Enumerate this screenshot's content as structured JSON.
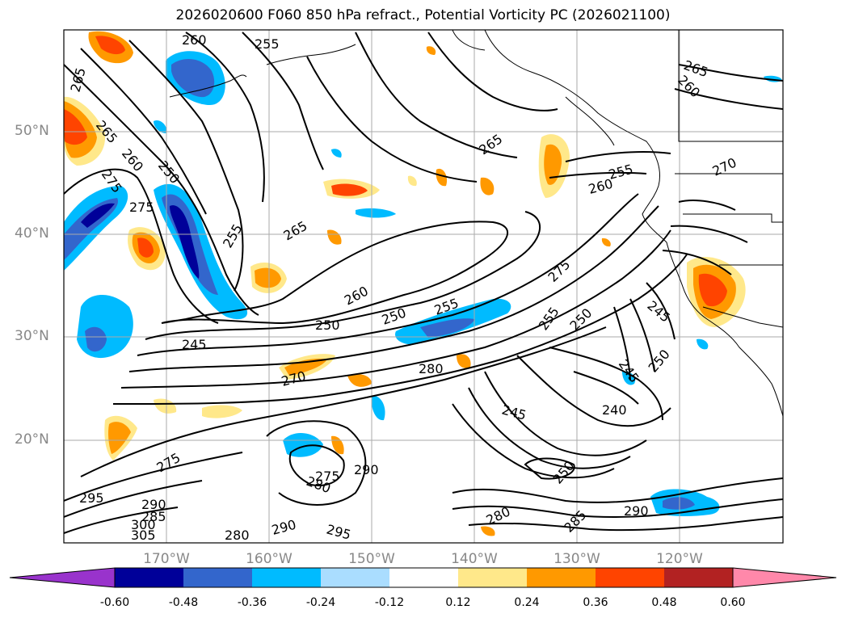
{
  "title": "2026020600 F060 850 hPa refract., Potential Vorticity PC (2026021100)",
  "lat_labels": [
    "50°N",
    "40°N",
    "30°N",
    "20°N"
  ],
  "lon_labels": [
    "170°W",
    "160°W",
    "150°W",
    "140°W",
    "130°W",
    "120°W"
  ],
  "colorbar": {
    "labels": [
      "-0.60",
      "-0.48",
      "-0.36",
      "-0.24",
      "-0.12",
      "0.12",
      "0.24",
      "0.36",
      "0.48",
      "0.60"
    ],
    "colors": [
      "#9933cc",
      "#000099",
      "#3366cc",
      "#00bbff",
      "#aaddff",
      "#ffffff",
      "#ffe88a",
      "#ff9900",
      "#ff4400",
      "#b22222",
      "#ff88aa"
    ]
  },
  "contour_labels": [
    {
      "text": "260"
    },
    {
      "text": "255"
    },
    {
      "text": "265"
    },
    {
      "text": "265"
    },
    {
      "text": "260"
    },
    {
      "text": "250"
    },
    {
      "text": "275"
    },
    {
      "text": "275"
    },
    {
      "text": "265"
    },
    {
      "text": "255"
    },
    {
      "text": "265"
    },
    {
      "text": "260"
    },
    {
      "text": "250"
    },
    {
      "text": "245"
    },
    {
      "text": "250"
    },
    {
      "text": "255"
    },
    {
      "text": "270"
    },
    {
      "text": "280"
    },
    {
      "text": "275"
    },
    {
      "text": "255"
    },
    {
      "text": "250"
    },
    {
      "text": "245"
    },
    {
      "text": "245"
    },
    {
      "text": "240"
    },
    {
      "text": "250"
    },
    {
      "text": "265"
    },
    {
      "text": "260"
    },
    {
      "text": "245"
    },
    {
      "text": "250"
    },
    {
      "text": "270"
    },
    {
      "text": "255"
    },
    {
      "text": "260"
    },
    {
      "text": "275"
    },
    {
      "text": "280"
    },
    {
      "text": "275"
    },
    {
      "text": "290"
    },
    {
      "text": "290"
    },
    {
      "text": "280"
    },
    {
      "text": "295"
    },
    {
      "text": "290"
    },
    {
      "text": "280"
    },
    {
      "text": "285"
    },
    {
      "text": "295"
    },
    {
      "text": "290"
    },
    {
      "text": "285"
    },
    {
      "text": "300"
    },
    {
      "text": "305"
    }
  ]
}
